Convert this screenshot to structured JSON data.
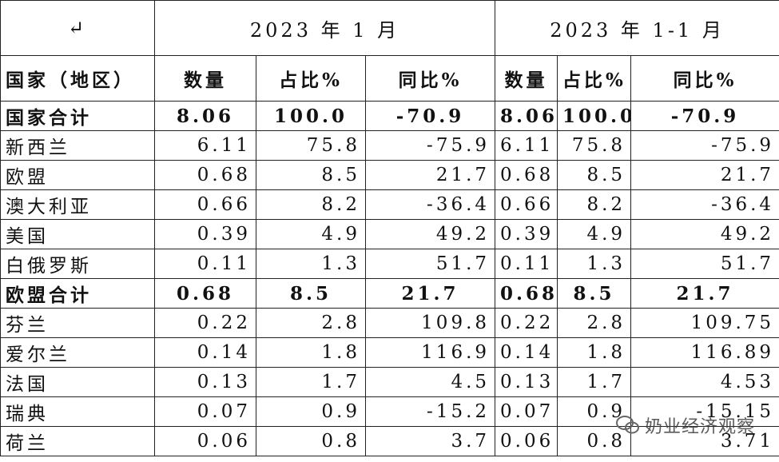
{
  "header": {
    "cells": [
      "↵",
      "2023 年 1 月",
      "2023 年 1-1 月"
    ]
  },
  "columns": [
    "国家（地区）",
    "数量",
    "占比%",
    "同比%",
    "数量",
    "占比%",
    "同比%"
  ],
  "rows": [
    [
      "国家合计",
      "8.06",
      "100.0",
      "-70.9",
      "8.06",
      "100.0",
      "-70.9"
    ],
    [
      "新西兰",
      "6.11",
      "75.8",
      "-75.9",
      "6.11",
      "75.8",
      "-75.9"
    ],
    [
      "欧盟",
      "0.68",
      "8.5",
      "21.7",
      "0.68",
      "8.5",
      "21.7"
    ],
    [
      "澳大利亚",
      "0.66",
      "8.2",
      "-36.4",
      "0.66",
      "8.2",
      "-36.4"
    ],
    [
      "美国",
      "0.39",
      "4.9",
      "49.2",
      "0.39",
      "4.9",
      "49.2"
    ],
    [
      "白俄罗斯",
      "0.11",
      "1.3",
      "51.7",
      "0.11",
      "1.3",
      "51.7"
    ],
    [
      "欧盟合计",
      "0.68",
      "8.5",
      "21.7",
      "0.68",
      "8.5",
      "21.7"
    ],
    [
      "芬兰",
      "0.22",
      "2.8",
      "109.8",
      "0.22",
      "2.8",
      "109.75"
    ],
    [
      "爱尔兰",
      "0.14",
      "1.8",
      "116.9",
      "0.14",
      "1.8",
      "116.89"
    ],
    [
      "法国",
      "0.13",
      "1.7",
      "4.5",
      "0.13",
      "1.7",
      "4.53"
    ],
    [
      "瑞典",
      "0.07",
      "0.9",
      "-15.2",
      "0.07",
      "0.9",
      "-15.15"
    ],
    [
      "荷兰",
      "0.06",
      "0.8",
      "3.7",
      "0.06",
      "0.8",
      "3.71"
    ]
  ],
  "watermark": "奶业经济观察"
}
